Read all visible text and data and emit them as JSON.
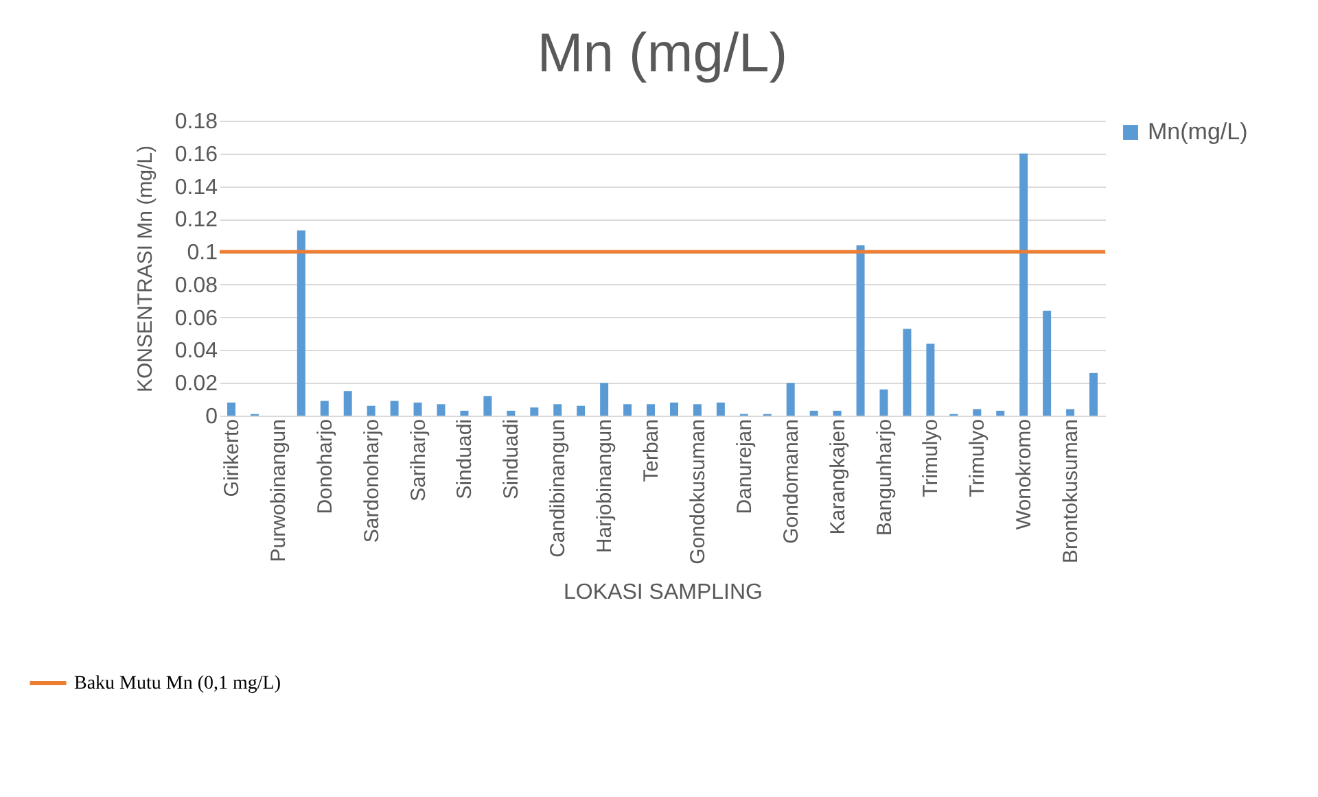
{
  "chart_data": {
    "type": "bar",
    "title": "Mn (mg/L)",
    "xlabel": "LOKASI SAMPLING",
    "ylabel": "KONSENTRASI Mn (mg/L)",
    "categories": [
      "Girikerto",
      null,
      "Purwobinangun",
      null,
      "Donoharjo",
      null,
      "Sardonoharjo",
      null,
      "Sariharjo",
      null,
      "Sinduadi",
      null,
      "Sinduadi",
      null,
      "Candibinangun",
      null,
      "Harjobinangun",
      null,
      "Terban",
      null,
      "Gondokusuman",
      null,
      "Danurejan",
      null,
      "Gondomanan",
      null,
      "Karangkajen",
      null,
      "Bangunharjo",
      null,
      "Trimulyo",
      null,
      "Trimulyo",
      null,
      "Wonokromo",
      null,
      "Brontokusuman",
      null
    ],
    "series": [
      {
        "name": "Mn(mg/L)",
        "color": "#5b9bd5",
        "values": [
          0.008,
          0.001,
          0,
          0.113,
          0.009,
          0.015,
          0.006,
          0.009,
          0.008,
          0.007,
          0.003,
          0.012,
          0.003,
          0.005,
          0.007,
          0.006,
          0.02,
          0.007,
          0.007,
          0.008,
          0.007,
          0.008,
          0.001,
          0.001,
          0.02,
          0.003,
          0.003,
          0.104,
          0.016,
          0.053,
          0.044,
          0.001,
          0.004,
          0.003,
          0.16,
          0.064,
          0.004,
          0.026
        ]
      }
    ],
    "ylim": [
      0,
      0.18
    ],
    "yticks": [
      0,
      0.02,
      0.04,
      0.06,
      0.08,
      0.1,
      0.12,
      0.14,
      0.16,
      0.18
    ],
    "grid": "y",
    "legend": "right",
    "ref_lines": [
      {
        "axis": "y",
        "value": 0.1,
        "label": "Baku Mutu Mn (0,1 mg/L)",
        "color": "#ed7d31"
      }
    ]
  }
}
